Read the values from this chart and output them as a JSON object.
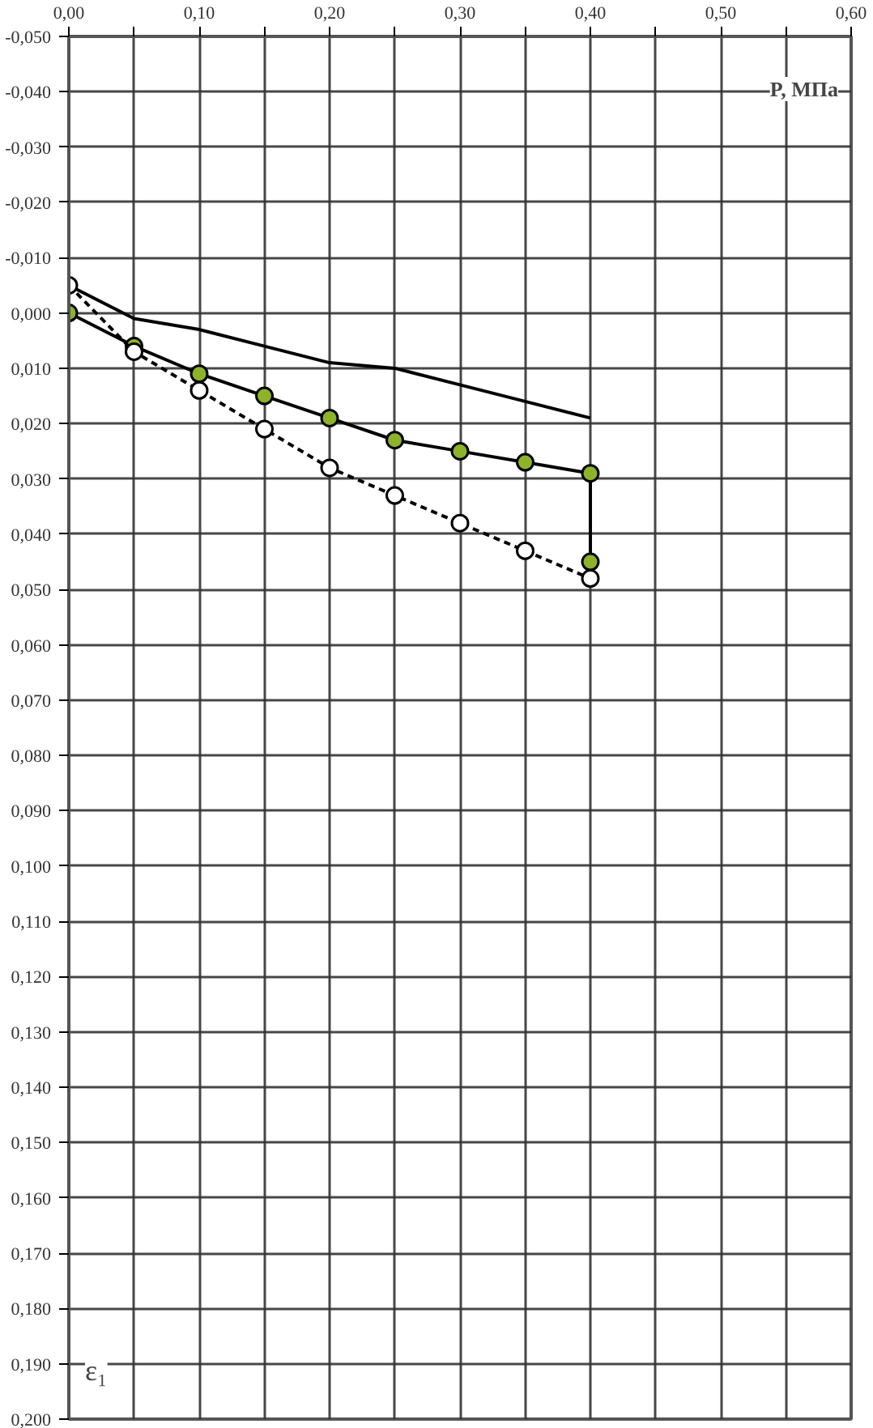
{
  "chart_data": {
    "type": "line",
    "xlabel": "P, МПа",
    "ylabel": "ε₁",
    "xlim": [
      0,
      0.6
    ],
    "ylim": [
      0.2,
      -0.05
    ],
    "xticks": [
      {
        "value": 0,
        "label": "0,00"
      },
      {
        "value": 0.05,
        "label": null
      },
      {
        "value": 0.1,
        "label": "0,10"
      },
      {
        "value": 0.15,
        "label": null
      },
      {
        "value": 0.2,
        "label": "0,20"
      },
      {
        "value": 0.25,
        "label": null
      },
      {
        "value": 0.3,
        "label": "0,30"
      },
      {
        "value": 0.35,
        "label": null
      },
      {
        "value": 0.4,
        "label": "0,40"
      },
      {
        "value": 0.45,
        "label": null
      },
      {
        "value": 0.5,
        "label": "0,50"
      },
      {
        "value": 0.55,
        "label": null
      },
      {
        "value": 0.6,
        "label": "0,60"
      }
    ],
    "yticks": [
      {
        "value": -0.05,
        "label": "-0,050"
      },
      {
        "value": -0.04,
        "label": "-0,040"
      },
      {
        "value": -0.03,
        "label": "-0,030"
      },
      {
        "value": -0.02,
        "label": "-0,020"
      },
      {
        "value": -0.01,
        "label": "-0,010"
      },
      {
        "value": 0,
        "label": "0,000"
      },
      {
        "value": 0.01,
        "label": "0,010"
      },
      {
        "value": 0.02,
        "label": "0,020"
      },
      {
        "value": 0.03,
        "label": "0,030"
      },
      {
        "value": 0.04,
        "label": "0,040"
      },
      {
        "value": 0.05,
        "label": "0,050"
      },
      {
        "value": 0.06,
        "label": "0,060"
      },
      {
        "value": 0.07,
        "label": "0,070"
      },
      {
        "value": 0.08,
        "label": "0,080"
      },
      {
        "value": 0.09,
        "label": "0,090"
      },
      {
        "value": 0.1,
        "label": "0,100"
      },
      {
        "value": 0.11,
        "label": "0,110"
      },
      {
        "value": 0.12,
        "label": "0,120"
      },
      {
        "value": 0.13,
        "label": "0,130"
      },
      {
        "value": 0.14,
        "label": "0,140"
      },
      {
        "value": 0.15,
        "label": "0,150"
      },
      {
        "value": 0.16,
        "label": "0,160"
      },
      {
        "value": 0.17,
        "label": "0,170"
      },
      {
        "value": 0.18,
        "label": "0,180"
      },
      {
        "value": 0.19,
        "label": "0,190"
      },
      {
        "value": 0.2,
        "label": "0,200"
      }
    ],
    "grid": true,
    "series": [
      {
        "color": "#000000",
        "marker": "none",
        "line_style": "solid",
        "x": [
          0,
          0.05,
          0.1,
          0.15,
          0.2,
          0.25,
          0.3,
          0.35,
          0.4
        ],
        "values": [
          -0.005,
          0.001,
          0.003,
          0.006,
          0.009,
          0.01,
          0.013,
          0.016,
          0.019
        ]
      },
      {
        "color": "#8db32a",
        "marker": "circle",
        "line_style": "solid",
        "x": [
          0,
          0.05,
          0.1,
          0.15,
          0.2,
          0.25,
          0.3,
          0.35,
          0.4,
          0.4
        ],
        "values": [
          0,
          0.006,
          0.011,
          0.015,
          0.019,
          0.023,
          0.025,
          0.027,
          0.029,
          0.045
        ]
      },
      {
        "color": "#ffffff",
        "marker": "circle",
        "line_style": "dashed",
        "x": [
          0,
          0.05,
          0.1,
          0.15,
          0.2,
          0.25,
          0.3,
          0.35,
          0.4
        ],
        "values": [
          -0.005,
          0.007,
          0.014,
          0.021,
          0.028,
          0.033,
          0.038,
          0.043,
          0.048
        ]
      }
    ]
  }
}
